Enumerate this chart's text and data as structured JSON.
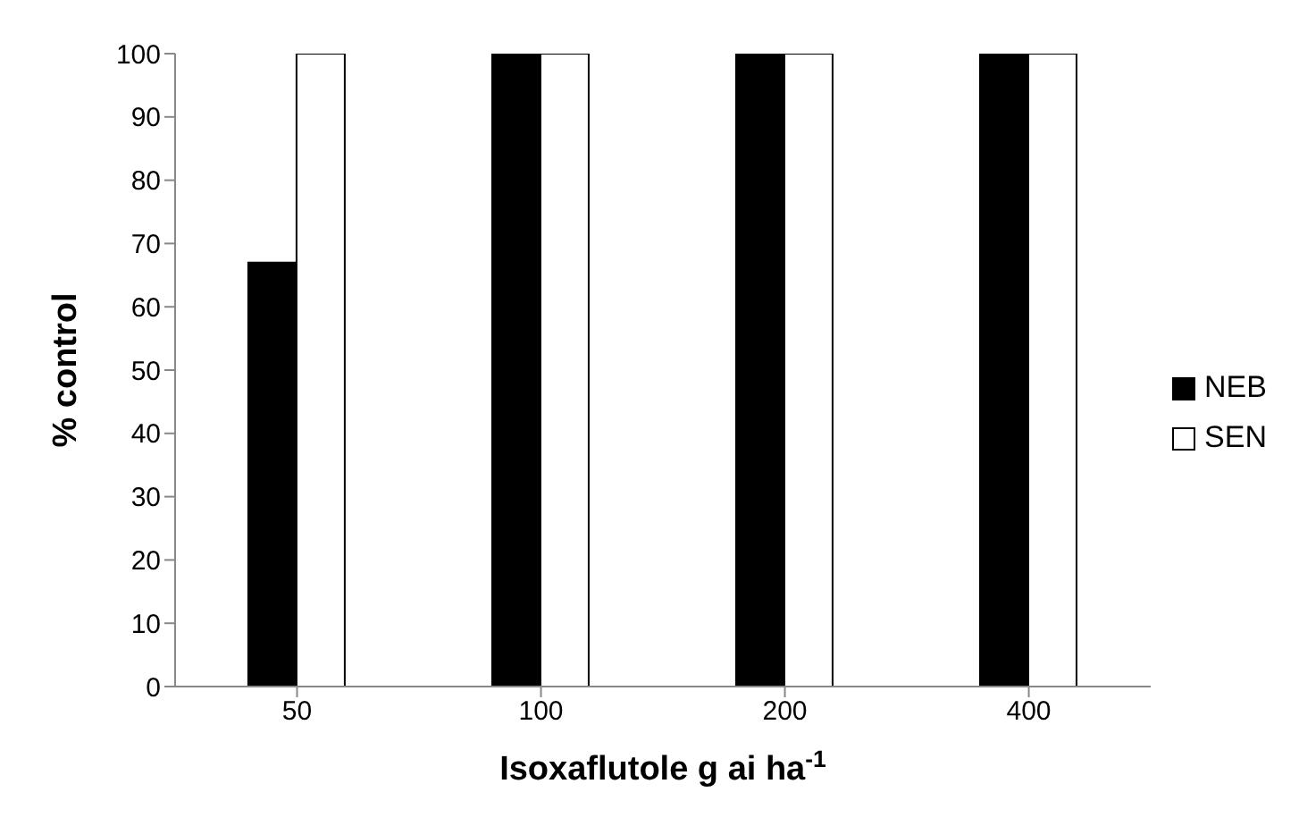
{
  "chart_data": {
    "type": "bar",
    "xlabel": "Isoxaflutole g ai ha$^{-1}$",
    "ylabel": "% control",
    "categories": [
      "50",
      "100",
      "200",
      "400"
    ],
    "series": [
      {
        "name": "NEB",
        "color": "#000000",
        "values": [
          67,
          100,
          100,
          100
        ]
      },
      {
        "name": "SEN",
        "color": "#ffffff",
        "values": [
          100,
          100,
          100,
          100
        ]
      }
    ],
    "ylim": [
      0,
      100
    ],
    "yticks": [
      0,
      10,
      20,
      30,
      40,
      50,
      60,
      70,
      80,
      90,
      100
    ],
    "legend": "right"
  }
}
